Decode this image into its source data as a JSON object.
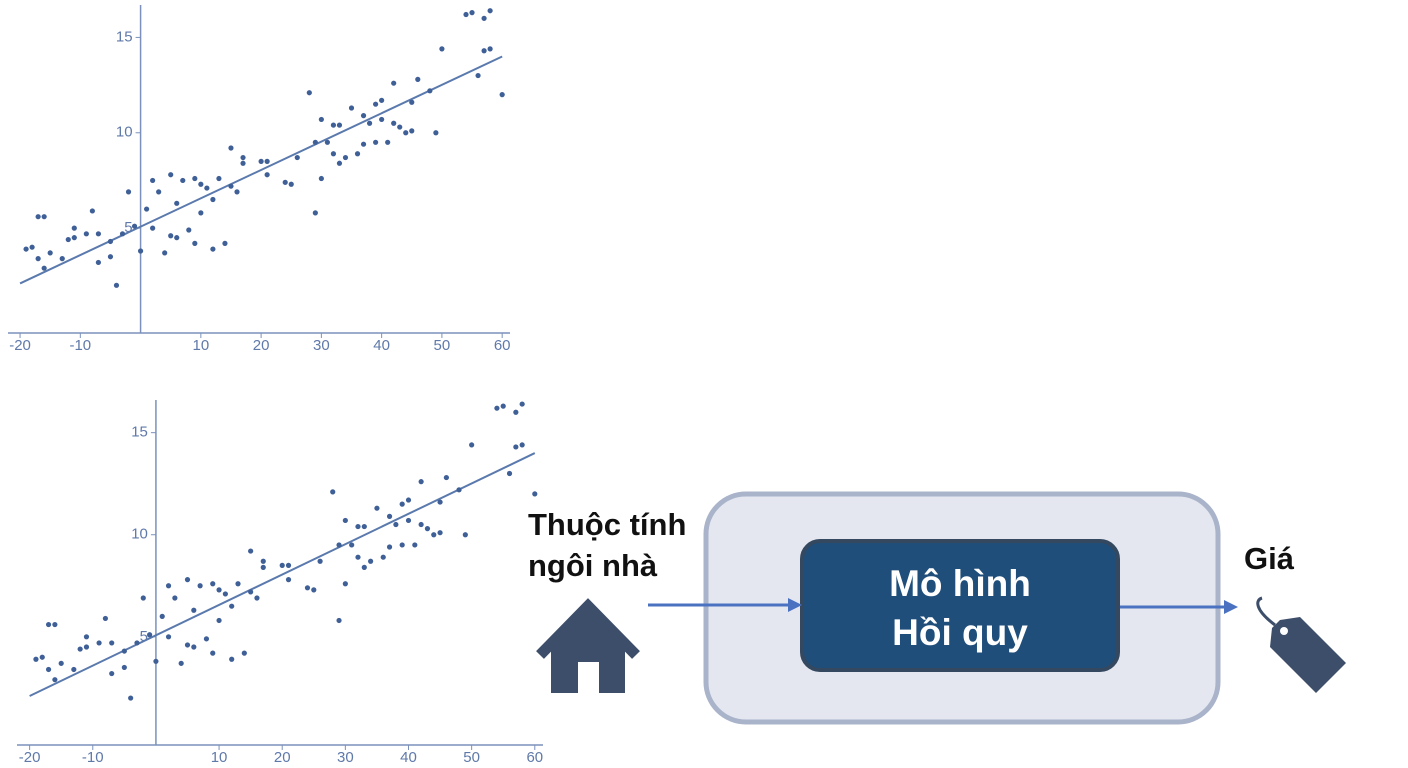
{
  "chart_data": [
    {
      "type": "scatter",
      "color": "#3f5f97",
      "line_color": "#5a79ad",
      "x": [
        -19,
        -18,
        -17,
        -16,
        -17,
        -16,
        -15,
        -13,
        -12,
        -11,
        -11,
        -9,
        -8,
        -7,
        -7,
        -5,
        -5,
        -4,
        -3,
        -2,
        -1,
        0,
        1,
        2,
        2,
        3,
        4,
        5,
        5,
        6,
        6,
        7,
        8,
        9,
        9,
        10,
        10,
        11,
        12,
        12,
        13,
        14,
        15,
        15,
        16,
        17,
        17,
        20,
        21,
        21,
        24,
        25,
        26,
        28,
        29,
        29,
        30,
        30,
        31,
        32,
        32,
        33,
        33,
        34,
        35,
        36,
        37,
        37,
        38,
        39,
        39,
        40,
        40,
        41,
        42,
        42,
        43,
        44,
        45,
        45,
        46,
        48,
        49,
        50,
        54,
        55,
        57,
        56,
        57,
        58,
        58,
        60
      ],
      "values": [
        3.9,
        4,
        5.6,
        5.6,
        3.4,
        2.9,
        3.7,
        3.4,
        4.4,
        4.5,
        5,
        4.7,
        5.9,
        3.2,
        4.7,
        3.5,
        4.3,
        2,
        4.7,
        6.9,
        5.1,
        3.8,
        6,
        5,
        7.5,
        6.9,
        3.7,
        4.6,
        7.8,
        4.5,
        6.3,
        7.5,
        4.9,
        7.6,
        4.2,
        5.8,
        7.3,
        7.1,
        3.9,
        6.5,
        7.6,
        4.2,
        9.2,
        7.2,
        6.9,
        8.4,
        8.7,
        8.5,
        7.8,
        8.5,
        7.4,
        7.3,
        8.7,
        12.1,
        9.5,
        5.8,
        10.7,
        7.6,
        9.5,
        10.4,
        8.9,
        8.4,
        10.4,
        8.7,
        11.3,
        8.9,
        10.9,
        9.4,
        10.5,
        11.5,
        9.5,
        11.7,
        10.7,
        9.5,
        10.5,
        12.6,
        10.3,
        10,
        10.1,
        11.6,
        12.8,
        12.2,
        10,
        14.4,
        16.2,
        16.3,
        14.3,
        13,
        16,
        16.4,
        14.4,
        12
      ],
      "fit": {
        "x": [
          -20,
          60
        ],
        "values": [
          2.1,
          14
        ]
      },
      "xlim": [
        -22,
        61.3
      ],
      "ylim": [
        -0.5,
        16.7
      ],
      "xticks": [
        -20,
        -10,
        10,
        20,
        30,
        40,
        50,
        60
      ],
      "yticks": [
        5,
        10,
        15
      ]
    },
    {
      "type": "scatter",
      "color": "#3f5f97",
      "line_color": "#5a79ad",
      "x": [
        -19,
        -18,
        -17,
        -16,
        -17,
        -16,
        -15,
        -13,
        -12,
        -11,
        -11,
        -9,
        -8,
        -7,
        -7,
        -5,
        -5,
        -4,
        -3,
        -2,
        -1,
        0,
        1,
        2,
        2,
        3,
        4,
        5,
        5,
        6,
        6,
        7,
        8,
        9,
        9,
        10,
        10,
        11,
        12,
        12,
        13,
        14,
        15,
        15,
        16,
        17,
        17,
        20,
        21,
        21,
        24,
        25,
        26,
        28,
        29,
        29,
        30,
        30,
        31,
        32,
        32,
        33,
        33,
        34,
        35,
        36,
        37,
        37,
        38,
        39,
        39,
        40,
        40,
        41,
        42,
        42,
        43,
        44,
        45,
        45,
        46,
        48,
        49,
        50,
        54,
        55,
        57,
        56,
        57,
        58,
        58,
        60
      ],
      "values": [
        3.9,
        4,
        5.6,
        5.6,
        3.4,
        2.9,
        3.7,
        3.4,
        4.4,
        4.5,
        5,
        4.7,
        5.9,
        3.2,
        4.7,
        3.5,
        4.3,
        2,
        4.7,
        6.9,
        5.1,
        3.8,
        6,
        5,
        7.5,
        6.9,
        3.7,
        4.6,
        7.8,
        4.5,
        6.3,
        7.5,
        4.9,
        7.6,
        4.2,
        5.8,
        7.3,
        7.1,
        3.9,
        6.5,
        7.6,
        4.2,
        9.2,
        7.2,
        6.9,
        8.4,
        8.7,
        8.5,
        7.8,
        8.5,
        7.4,
        7.3,
        8.7,
        12.1,
        9.5,
        5.8,
        10.7,
        7.6,
        9.5,
        10.4,
        8.9,
        8.4,
        10.4,
        8.7,
        11.3,
        8.9,
        10.9,
        9.4,
        10.5,
        11.5,
        9.5,
        11.7,
        10.7,
        9.5,
        10.5,
        12.6,
        10.3,
        10,
        10.1,
        11.6,
        12.8,
        12.2,
        10,
        14.4,
        16.2,
        16.3,
        14.3,
        13,
        16,
        16.4,
        14.4,
        12
      ],
      "fit": {
        "x": [
          -20,
          60
        ],
        "values": [
          2.1,
          14
        ]
      },
      "xlim": [
        -22,
        61.3
      ],
      "ylim": [
        -0.3,
        16.6
      ],
      "xticks": [
        -20,
        -10,
        10,
        20,
        30,
        40,
        50,
        60
      ],
      "yticks": [
        5,
        10,
        15
      ]
    }
  ],
  "diagram": {
    "input_label": [
      "Thuộc tính",
      "ngôi nhà"
    ],
    "model_label": [
      "Mô hình",
      "Hồi quy"
    ],
    "output_label": "Giá"
  }
}
